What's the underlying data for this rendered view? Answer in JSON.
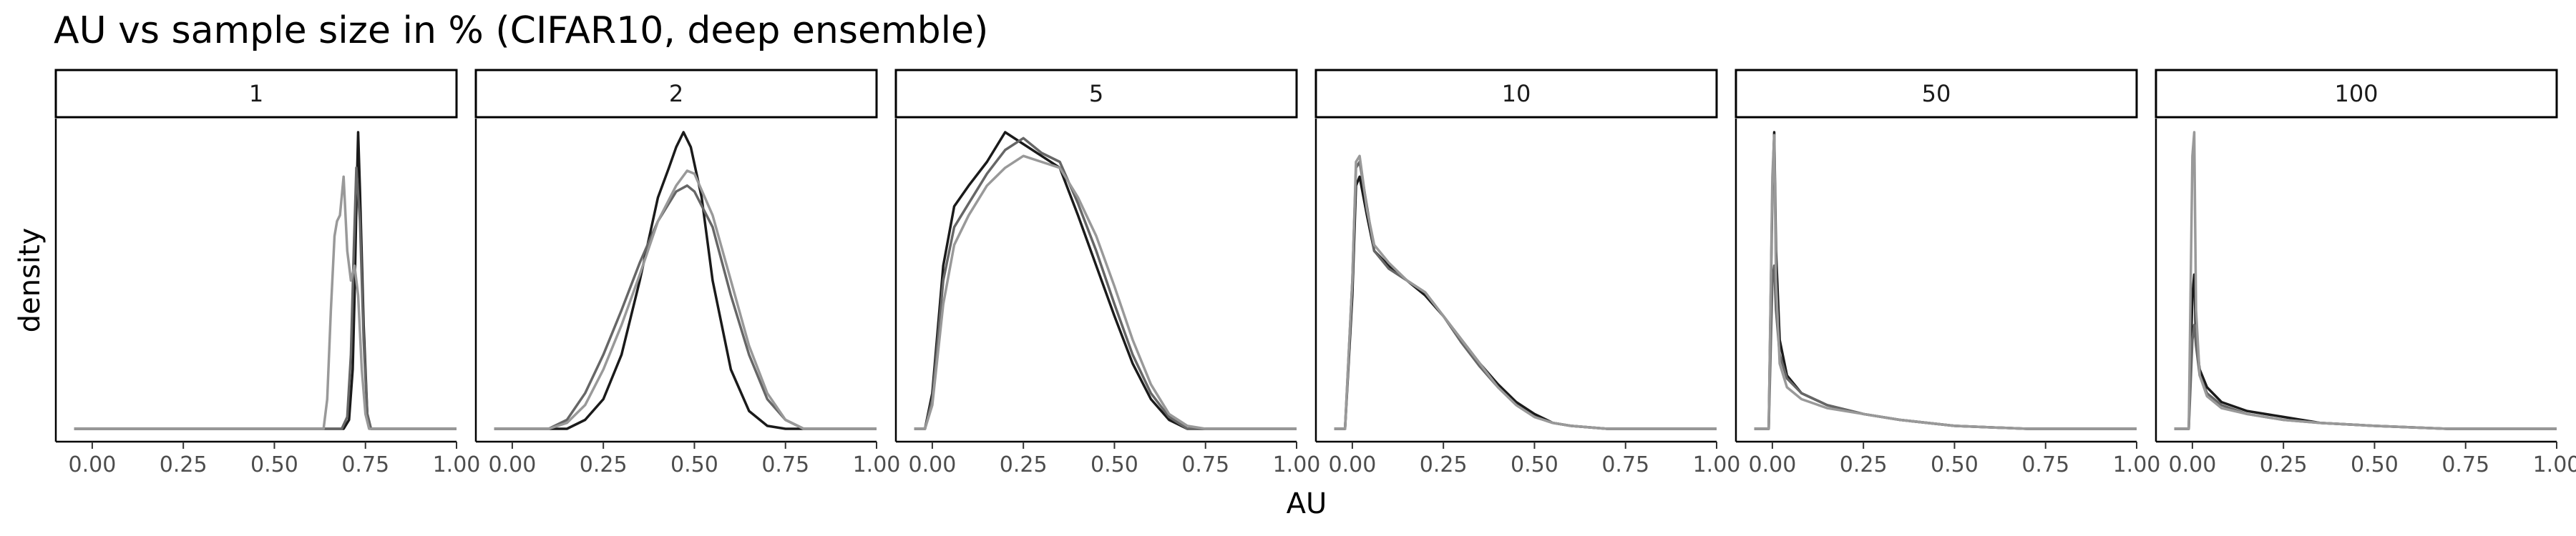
{
  "chart_data": {
    "type": "line",
    "title": "AU vs sample size in % (CIFAR10, deep ensemble)",
    "xlabel": "AU",
    "ylabel": "density",
    "xlim": [
      -0.1,
      1.0
    ],
    "x_ticks": [
      0.0,
      0.25,
      0.5,
      0.75,
      1.0
    ],
    "x_tick_labels": [
      "0.00",
      "0.25",
      "0.50",
      "0.75",
      "1.00"
    ],
    "grid": false,
    "legend": "none",
    "series_colors": [
      "#1a1a1a",
      "#666666",
      "#999999"
    ],
    "panels": [
      {
        "label": "1",
        "series": [
          {
            "x": [
              -0.05,
              0.69,
              0.705,
              0.715,
              0.72,
              0.725,
              0.73,
              0.735,
              0.745,
              0.755,
              0.765,
              1.0
            ],
            "y": [
              0,
              0,
              0.03,
              0.2,
              0.45,
              0.75,
              1.0,
              0.8,
              0.35,
              0.05,
              0,
              0
            ]
          },
          {
            "x": [
              -0.05,
              0.685,
              0.7,
              0.71,
              0.718,
              0.725,
              0.735,
              0.745,
              0.755,
              0.765,
              1.0
            ],
            "y": [
              0,
              0,
              0.04,
              0.25,
              0.6,
              0.88,
              0.7,
              0.3,
              0.05,
              0,
              0
            ]
          },
          {
            "x": [
              -0.05,
              0.635,
              0.645,
              0.655,
              0.665,
              0.672,
              0.68,
              0.69,
              0.7,
              0.71,
              0.72,
              0.73,
              0.74,
              0.75,
              0.76,
              1.0
            ],
            "y": [
              0,
              0,
              0.1,
              0.4,
              0.65,
              0.7,
              0.72,
              0.85,
              0.6,
              0.5,
              0.55,
              0.45,
              0.2,
              0.05,
              0,
              0
            ]
          }
        ]
      },
      {
        "label": "2",
        "series": [
          {
            "x": [
              -0.05,
              0.15,
              0.2,
              0.25,
              0.3,
              0.35,
              0.4,
              0.43,
              0.45,
              0.47,
              0.49,
              0.52,
              0.55,
              0.6,
              0.65,
              0.7,
              0.75,
              1.0
            ],
            "y": [
              0,
              0,
              0.03,
              0.1,
              0.25,
              0.5,
              0.78,
              0.88,
              0.95,
              1.0,
              0.95,
              0.78,
              0.5,
              0.2,
              0.06,
              0.01,
              0,
              0
            ]
          },
          {
            "x": [
              -0.05,
              0.1,
              0.15,
              0.2,
              0.25,
              0.3,
              0.35,
              0.4,
              0.45,
              0.48,
              0.5,
              0.55,
              0.6,
              0.65,
              0.7,
              0.75,
              0.8,
              1.0
            ],
            "y": [
              0,
              0,
              0.03,
              0.12,
              0.25,
              0.4,
              0.56,
              0.7,
              0.8,
              0.82,
              0.8,
              0.68,
              0.45,
              0.25,
              0.1,
              0.03,
              0,
              0
            ]
          },
          {
            "x": [
              -0.05,
              0.1,
              0.15,
              0.2,
              0.25,
              0.3,
              0.35,
              0.4,
              0.45,
              0.48,
              0.5,
              0.55,
              0.6,
              0.65,
              0.7,
              0.75,
              0.8,
              1.0
            ],
            "y": [
              0,
              0,
              0.02,
              0.08,
              0.2,
              0.35,
              0.52,
              0.7,
              0.82,
              0.87,
              0.86,
              0.72,
              0.5,
              0.28,
              0.12,
              0.03,
              0,
              0
            ]
          }
        ]
      },
      {
        "label": "5",
        "series": [
          {
            "x": [
              -0.05,
              -0.02,
              0.0,
              0.03,
              0.06,
              0.1,
              0.15,
              0.2,
              0.25,
              0.3,
              0.35,
              0.4,
              0.45,
              0.5,
              0.55,
              0.6,
              0.65,
              0.7,
              1.0
            ],
            "y": [
              0,
              0,
              0.12,
              0.55,
              0.75,
              0.82,
              0.9,
              1.0,
              0.96,
              0.92,
              0.88,
              0.72,
              0.55,
              0.38,
              0.22,
              0.1,
              0.03,
              0,
              0
            ]
          },
          {
            "x": [
              -0.05,
              -0.02,
              0.0,
              0.03,
              0.06,
              0.1,
              0.15,
              0.2,
              0.25,
              0.3,
              0.35,
              0.4,
              0.45,
              0.5,
              0.55,
              0.6,
              0.65,
              0.7,
              1.0
            ],
            "y": [
              0,
              0,
              0.1,
              0.5,
              0.68,
              0.76,
              0.86,
              0.94,
              0.98,
              0.93,
              0.9,
              0.76,
              0.6,
              0.42,
              0.25,
              0.12,
              0.04,
              0,
              0
            ]
          },
          {
            "x": [
              -0.05,
              -0.02,
              0.0,
              0.03,
              0.06,
              0.1,
              0.15,
              0.2,
              0.25,
              0.3,
              0.35,
              0.4,
              0.45,
              0.5,
              0.55,
              0.6,
              0.65,
              0.7,
              0.75,
              1.0
            ],
            "y": [
              0,
              0,
              0.08,
              0.42,
              0.62,
              0.72,
              0.82,
              0.88,
              0.92,
              0.9,
              0.88,
              0.78,
              0.65,
              0.48,
              0.3,
              0.15,
              0.05,
              0.01,
              0,
              0
            ]
          }
        ]
      },
      {
        "label": "10",
        "series": [
          {
            "x": [
              -0.05,
              -0.02,
              0.0,
              0.01,
              0.02,
              0.04,
              0.06,
              0.1,
              0.15,
              0.2,
              0.25,
              0.3,
              0.35,
              0.4,
              0.45,
              0.5,
              0.55,
              0.6,
              0.7,
              1.0
            ],
            "y": [
              0,
              0,
              0.45,
              0.82,
              0.85,
              0.72,
              0.6,
              0.55,
              0.5,
              0.45,
              0.38,
              0.3,
              0.22,
              0.15,
              0.09,
              0.05,
              0.02,
              0.01,
              0,
              0
            ]
          },
          {
            "x": [
              -0.05,
              -0.02,
              0.0,
              0.01,
              0.02,
              0.04,
              0.06,
              0.1,
              0.15,
              0.2,
              0.25,
              0.3,
              0.35,
              0.4,
              0.45,
              0.5,
              0.55,
              0.6,
              0.7,
              1.0
            ],
            "y": [
              0,
              0,
              0.5,
              0.88,
              0.9,
              0.75,
              0.6,
              0.54,
              0.5,
              0.46,
              0.38,
              0.29,
              0.21,
              0.14,
              0.08,
              0.04,
              0.02,
              0.01,
              0,
              0
            ]
          },
          {
            "x": [
              -0.05,
              -0.02,
              0.0,
              0.01,
              0.02,
              0.04,
              0.06,
              0.1,
              0.15,
              0.2,
              0.25,
              0.3,
              0.35,
              0.4,
              0.45,
              0.5,
              0.55,
              0.6,
              0.7,
              1.0
            ],
            "y": [
              0,
              0,
              0.5,
              0.9,
              0.92,
              0.74,
              0.62,
              0.56,
              0.5,
              0.46,
              0.38,
              0.3,
              0.22,
              0.14,
              0.08,
              0.04,
              0.02,
              0.01,
              0,
              0
            ]
          }
        ]
      },
      {
        "label": "50",
        "series": [
          {
            "x": [
              -0.05,
              -0.01,
              0.0,
              0.005,
              0.01,
              0.02,
              0.04,
              0.08,
              0.15,
              0.25,
              0.35,
              0.5,
              0.7,
              1.0
            ],
            "y": [
              0,
              0,
              0.8,
              1.0,
              0.6,
              0.3,
              0.18,
              0.12,
              0.08,
              0.05,
              0.03,
              0.01,
              0,
              0
            ]
          },
          {
            "x": [
              -0.05,
              -0.01,
              0.0,
              0.005,
              0.01,
              0.02,
              0.04,
              0.08,
              0.15,
              0.25,
              0.35,
              0.5,
              0.7,
              1.0
            ],
            "y": [
              0,
              0,
              0.5,
              0.55,
              0.4,
              0.25,
              0.17,
              0.12,
              0.08,
              0.05,
              0.03,
              0.01,
              0,
              0
            ]
          },
          {
            "x": [
              -0.05,
              -0.01,
              0.0,
              0.005,
              0.01,
              0.02,
              0.04,
              0.08,
              0.15,
              0.25,
              0.35,
              0.5,
              0.7,
              1.0
            ],
            "y": [
              0,
              0,
              0.85,
              0.99,
              0.5,
              0.22,
              0.14,
              0.1,
              0.07,
              0.05,
              0.03,
              0.01,
              0,
              0
            ]
          }
        ]
      },
      {
        "label": "100",
        "series": [
          {
            "x": [
              -0.05,
              -0.01,
              0.0,
              0.005,
              0.01,
              0.02,
              0.04,
              0.08,
              0.15,
              0.25,
              0.35,
              0.5,
              0.7,
              1.0
            ],
            "y": [
              0,
              0,
              0.45,
              0.52,
              0.3,
              0.2,
              0.14,
              0.09,
              0.06,
              0.04,
              0.02,
              0.01,
              0,
              0
            ]
          },
          {
            "x": [
              -0.05,
              -0.01,
              0.0,
              0.005,
              0.01,
              0.02,
              0.04,
              0.08,
              0.15,
              0.25,
              0.35,
              0.5,
              0.7,
              1.0
            ],
            "y": [
              0,
              0,
              0.3,
              0.35,
              0.28,
              0.18,
              0.12,
              0.08,
              0.05,
              0.03,
              0.02,
              0.01,
              0,
              0
            ]
          },
          {
            "x": [
              -0.05,
              -0.01,
              0.0,
              0.005,
              0.01,
              0.02,
              0.04,
              0.08,
              0.15,
              0.25,
              0.35,
              0.5,
              0.7,
              1.0
            ],
            "y": [
              0,
              0,
              0.92,
              1.0,
              0.4,
              0.18,
              0.11,
              0.07,
              0.05,
              0.03,
              0.02,
              0.01,
              0,
              0
            ]
          }
        ]
      }
    ]
  }
}
